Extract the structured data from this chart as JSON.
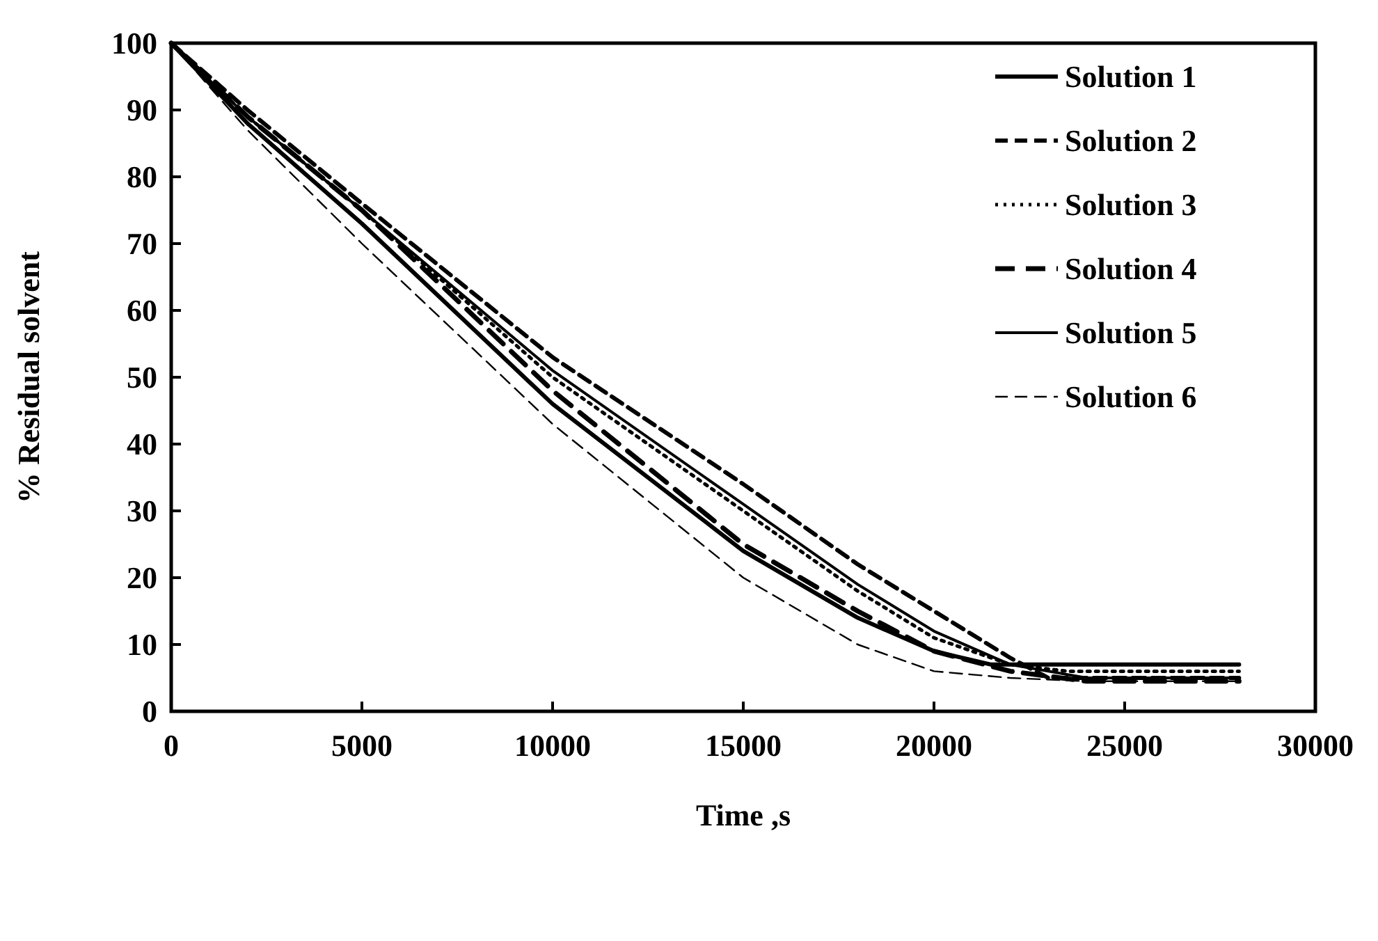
{
  "chart_data": {
    "type": "line",
    "xlabel": "Time ,s",
    "ylabel": "% Residual solvent",
    "xlim": [
      0,
      30000
    ],
    "ylim": [
      0,
      100
    ],
    "xticks": [
      0,
      5000,
      10000,
      15000,
      20000,
      25000,
      30000
    ],
    "yticks": [
      0,
      10,
      20,
      30,
      40,
      50,
      60,
      70,
      80,
      90,
      100
    ],
    "grid": false,
    "legend": "top right",
    "series": [
      {
        "name": "Solution 1",
        "color": "#000000",
        "line_style": "solid",
        "x": [
          0,
          2000,
          5000,
          10000,
          15000,
          18000,
          20000,
          21500,
          28000
        ],
        "values": [
          100,
          88,
          73,
          46,
          24,
          14,
          9,
          7,
          7
        ]
      },
      {
        "name": "Solution 2",
        "color": "#000000",
        "line_style": "dashed",
        "x": [
          0,
          2000,
          5000,
          10000,
          15000,
          18000,
          20000,
          22000,
          23000,
          28000
        ],
        "values": [
          100,
          90,
          76,
          53,
          34,
          22,
          15,
          8,
          5,
          5
        ]
      },
      {
        "name": "Solution 3",
        "color": "#000000",
        "line_style": "dotted",
        "x": [
          0,
          2000,
          5000,
          10000,
          15000,
          18000,
          20000,
          22000,
          23500,
          28000
        ],
        "values": [
          100,
          89,
          75,
          50,
          30,
          18,
          11,
          7,
          6,
          6
        ]
      },
      {
        "name": "Solution 4",
        "color": "#000000",
        "line_style": "dashed",
        "x": [
          0,
          2000,
          5000,
          10000,
          15000,
          18000,
          20000,
          22000,
          24000,
          28000
        ],
        "values": [
          100,
          89,
          75,
          48,
          25,
          15,
          9,
          6,
          4.5,
          4.5
        ]
      },
      {
        "name": "Solution 5",
        "color": "#000000",
        "line_style": "solid",
        "x": [
          0,
          2000,
          5000,
          10000,
          15000,
          18000,
          20000,
          22000,
          24000,
          28000
        ],
        "values": [
          100,
          89,
          75,
          51,
          31,
          19,
          12,
          7,
          5,
          5
        ]
      },
      {
        "name": "Solution 6",
        "color": "#000000",
        "line_style": "dashed",
        "x": [
          0,
          2000,
          5000,
          10000,
          15000,
          18000,
          20000,
          22000,
          24000,
          28000
        ],
        "values": [
          100,
          87,
          70,
          43,
          20,
          10,
          6,
          5,
          4.5,
          4.5
        ]
      }
    ]
  }
}
